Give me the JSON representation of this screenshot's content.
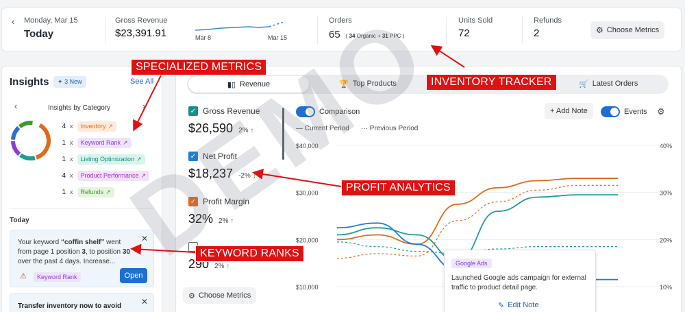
{
  "header": {
    "date_day": "Monday, Mar 15",
    "date_title": "Today",
    "gross_revenue_label": "Gross Revenue",
    "gross_revenue_value": "$23,391.91",
    "spark_start": "Mar 8",
    "spark_end": "Mar 15",
    "orders_label": "Orders",
    "orders_value": "65",
    "orders_organic_num": "34",
    "orders_organic_label": "Organic",
    "orders_ppc_num": "31",
    "orders_ppc_label": "PPC",
    "units_label": "Units Sold",
    "units_value": "72",
    "refunds_label": "Refunds",
    "refunds_value": "2",
    "choose_metrics": "Choose Metrics"
  },
  "insights": {
    "title": "Insights",
    "new_badge": "3 New",
    "see_all": "See All",
    "by_category": "Insights by Category",
    "categories": [
      {
        "count": "4",
        "x": "x",
        "label": "Inventory",
        "color": "#e8701a",
        "bg": "#fde9d9"
      },
      {
        "count": "1",
        "x": "x",
        "label": "Keyword Rank",
        "color": "#8a3fd1",
        "bg": "#efe3fb"
      },
      {
        "count": "1",
        "x": "x",
        "label": "Listing Optimization",
        "color": "#108f7a",
        "bg": "#d9f3ee"
      },
      {
        "count": "4",
        "x": "x",
        "label": "Product Performance",
        "color": "#9b2fc4",
        "bg": "#f4e1fb"
      },
      {
        "count": "1",
        "x": "x",
        "label": "Refunds",
        "color": "#3f9a2a",
        "bg": "#e3f5dc"
      }
    ],
    "today_label": "Today",
    "card1_prefix": "Your keyword ",
    "card1_keyword": "“coffin shelf”",
    "card1_mid1": " went from page 1 position ",
    "card1_pos1": "3",
    "card1_mid2": ", to position ",
    "card1_pos2": "30",
    "card1_suffix": " over the past 4 days. Increase...",
    "card1_tag": "Keyword Rank",
    "card1_open": "Open",
    "card2_title": "Transfer inventory now to avoid"
  },
  "tabs": [
    {
      "label": "Revenue"
    },
    {
      "label": "Top Products"
    },
    {
      "label": "Latest Orders"
    }
  ],
  "metrics": [
    {
      "label": "Gross Revenue",
      "value": "$26,590",
      "delta": "2%",
      "arrow": "↑",
      "color": "#1a8f8a"
    },
    {
      "label": "Net Profit",
      "value": "$18,237",
      "delta": "-2%",
      "arrow": "↓",
      "color": "#1f7fd6"
    },
    {
      "label": "Profit Margin",
      "value": "32%",
      "delta": "2%",
      "arrow": "↑",
      "color": "#e06a1b"
    },
    {
      "label": "",
      "value": "290",
      "delta": "2%",
      "arrow": "↑",
      "color": "#ffffff"
    }
  ],
  "choose_metrics_small": "Choose Metrics",
  "chart_controls": {
    "comparison": "Comparison",
    "add_note": "+ Add Note",
    "events": "Events",
    "current_period": "Current Period",
    "previous_period": "Previous Period"
  },
  "chart_data": {
    "type": "line",
    "x": [
      0,
      1,
      2,
      3,
      4,
      5,
      6,
      7
    ],
    "y_left_ticks": [
      "$40,000",
      "$30,000",
      "$20,000",
      "$10,000"
    ],
    "y_right_ticks": [
      "40%",
      "30%",
      "20%",
      "10%"
    ],
    "ylim": [
      10000,
      40000
    ],
    "series": [
      {
        "values": [
          20000,
          21000,
          19000,
          27500,
          31000,
          32500,
          33000,
          33000
        ],
        "color": "#e06a1b",
        "dash": false
      },
      {
        "values": [
          16000,
          17000,
          16500,
          24000,
          28000,
          30500,
          31500,
          31500
        ],
        "color": "#e06a1b",
        "dash": true
      },
      {
        "values": [
          21000,
          22500,
          21000,
          15500,
          26000,
          29000,
          29500,
          29500
        ],
        "color": "#1a9e95",
        "dash": false
      },
      {
        "values": [
          22500,
          23500,
          19000,
          13500,
          12500,
          11500,
          11500,
          11500
        ],
        "color": "#1f7fd6",
        "dash": false
      },
      {
        "values": [
          19500,
          18500,
          17500,
          17000,
          18000,
          18500,
          18500,
          18500
        ],
        "color": "#1a9e95",
        "dash": true
      }
    ]
  },
  "note_popup": {
    "tag": "Google Ads",
    "text": "Launched Google ads campaign for external traffic to product detail page.",
    "edit": "Edit Note"
  },
  "annotations": {
    "specialized": "SPECIALIZED METRICS",
    "inventory": "INVENTORY TRACKER",
    "profit": "PROFIT ANALYTICS",
    "keyword": "KEYWORD RANKS"
  },
  "watermark": "DEMO",
  "colors": {
    "accent": "#1f6fd1",
    "annotation": "#e01111"
  }
}
